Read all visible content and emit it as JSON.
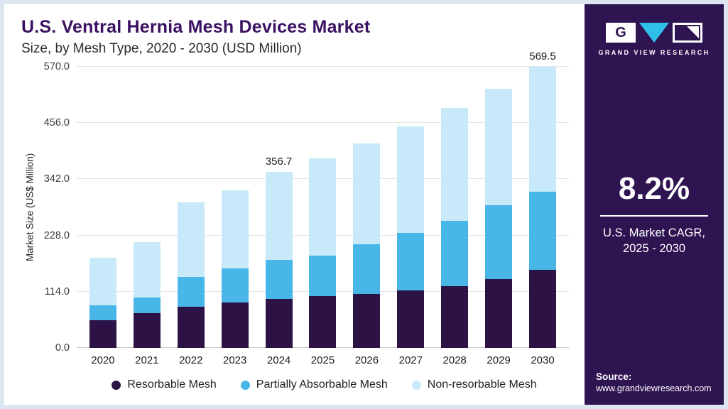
{
  "header": {
    "title": "U.S. Ventral Hernia Mesh Devices Market",
    "subtitle": "Size, by Mesh Type, 2020 - 2030 (USD Million)"
  },
  "chart_data": {
    "type": "bar",
    "stacked": true,
    "title": "U.S. Ventral Hernia Mesh Devices Market Size, by Mesh Type, 2020 - 2030 (USD Million)",
    "xlabel": "",
    "ylabel": "Market Size (US$ Million)",
    "ylim": [
      0,
      570
    ],
    "yticks": [
      "0.0",
      "114.0",
      "228.0",
      "342.0",
      "456.0",
      "570.0"
    ],
    "grid": true,
    "legend_position": "bottom",
    "categories": [
      "2020",
      "2021",
      "2022",
      "2023",
      "2024",
      "2025",
      "2026",
      "2027",
      "2028",
      "2029",
      "2030"
    ],
    "series": [
      {
        "name": "Resorbable Mesh",
        "color": "#2d1245",
        "values": [
          56,
          70,
          83,
          92,
          99,
          105,
          109,
          116,
          125,
          139,
          158
        ]
      },
      {
        "name": "Partially Absorbable Mesh",
        "color": "#48b7e8",
        "values": [
          30,
          33,
          61,
          69,
          79,
          82,
          101,
          117,
          133,
          150,
          158
        ]
      },
      {
        "name": "Non-resorbable Mesh",
        "color": "#c8e9f9",
        "values": [
          97,
          111,
          151,
          159,
          178.7,
          196.8,
          205,
          216,
          228,
          237,
          253.5
        ]
      }
    ],
    "totals": [
      183,
      214,
      295,
      320,
      356.7,
      383.8,
      415,
      449,
      486,
      526,
      569.5
    ],
    "annotations": [
      {
        "category": "2024",
        "text": "356.7"
      },
      {
        "category": "2030",
        "text": "569.5"
      }
    ]
  },
  "sidebar": {
    "logo_g": "G",
    "logo_text": "GRAND VIEW RESEARCH",
    "cagr_value": "8.2%",
    "cagr_label_line1": "U.S. Market CAGR,",
    "cagr_label_line2": "2025 - 2030",
    "source_label": "Source:",
    "source_url": "www.grandviewresearch.com"
  },
  "colors": {
    "sidebar_bg": "#2f1452",
    "title_text": "#3b1162",
    "accent_teal": "#2fc0e9"
  }
}
